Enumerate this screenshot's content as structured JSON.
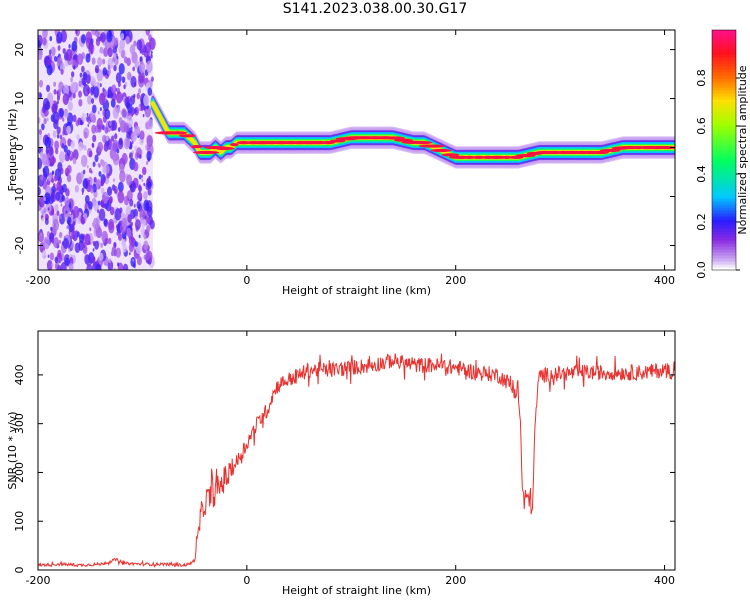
{
  "title": "S141.2023.038.00.30.G17",
  "chart_data": [
    {
      "type": "heatmap",
      "xlabel": "Height of straight line (km)",
      "ylabel": "Frequency (Hz)",
      "xlim": [
        -200,
        410
      ],
      "ylim": [
        -25,
        24
      ],
      "xticks": [
        -200,
        0,
        200,
        400
      ],
      "yticks": [
        -20,
        -10,
        0,
        10,
        20
      ],
      "colorbar": {
        "label": "Normalized spectral amplitude",
        "ticks": [
          0.0,
          0.2,
          0.4,
          0.6,
          0.8
        ],
        "range": [
          0,
          1
        ]
      },
      "noise_region_x": [
        -200,
        -90
      ],
      "ridge": {
        "x": [
          -90,
          -85,
          -80,
          -75,
          -70,
          -65,
          -60,
          -55,
          -50,
          -45,
          -40,
          -35,
          -30,
          -25,
          -20,
          -15,
          -10,
          0,
          20,
          40,
          60,
          80,
          100,
          120,
          140,
          160,
          170,
          180,
          190,
          200,
          210,
          220,
          240,
          260,
          280,
          300,
          320,
          340,
          360,
          380,
          400,
          410
        ],
        "y": [
          9,
          7,
          5,
          3,
          3,
          3,
          3,
          2,
          1,
          -1,
          -1,
          -1,
          0,
          -1,
          0,
          0,
          1,
          1,
          1,
          1,
          1,
          1,
          2,
          2,
          2,
          1,
          1,
          0,
          -1,
          -2,
          -2,
          -2,
          -2,
          -2,
          -1,
          -1,
          -1,
          -1,
          0,
          0,
          0,
          0
        ]
      }
    },
    {
      "type": "line",
      "xlabel": "Height of straight line (km)",
      "ylabel": "SNR (10 * v/v)",
      "xlim": [
        -200,
        410
      ],
      "ylim": [
        0,
        490
      ],
      "xticks": [
        -200,
        0,
        200,
        400
      ],
      "yticks": [
        0,
        100,
        200,
        300,
        400
      ],
      "series": [
        {
          "color": "#e8322f",
          "x": [
            -200,
            -180,
            -160,
            -140,
            -130,
            -125,
            -120,
            -100,
            -80,
            -60,
            -55,
            -50,
            -47,
            -45,
            -40,
            -35,
            -30,
            -20,
            -10,
            0,
            10,
            20,
            25,
            30,
            40,
            50,
            60,
            80,
            100,
            120,
            140,
            160,
            180,
            200,
            220,
            240,
            250,
            255,
            260,
            262,
            264,
            266,
            268,
            270,
            272,
            274,
            276,
            278,
            280,
            282,
            285,
            290,
            300,
            320,
            340,
            360,
            380,
            400,
            410
          ],
          "y": [
            10,
            12,
            10,
            12,
            18,
            22,
            14,
            12,
            12,
            10,
            12,
            20,
            60,
            100,
            140,
            150,
            160,
            190,
            220,
            260,
            300,
            330,
            360,
            380,
            390,
            400,
            410,
            410,
            415,
            420,
            430,
            420,
            420,
            415,
            405,
            400,
            385,
            370,
            360,
            300,
            150,
            140,
            145,
            150,
            140,
            145,
            300,
            360,
            395,
            400,
            400,
            400,
            402,
            405,
            405,
            405,
            405,
            410,
            405
          ]
        }
      ]
    }
  ]
}
